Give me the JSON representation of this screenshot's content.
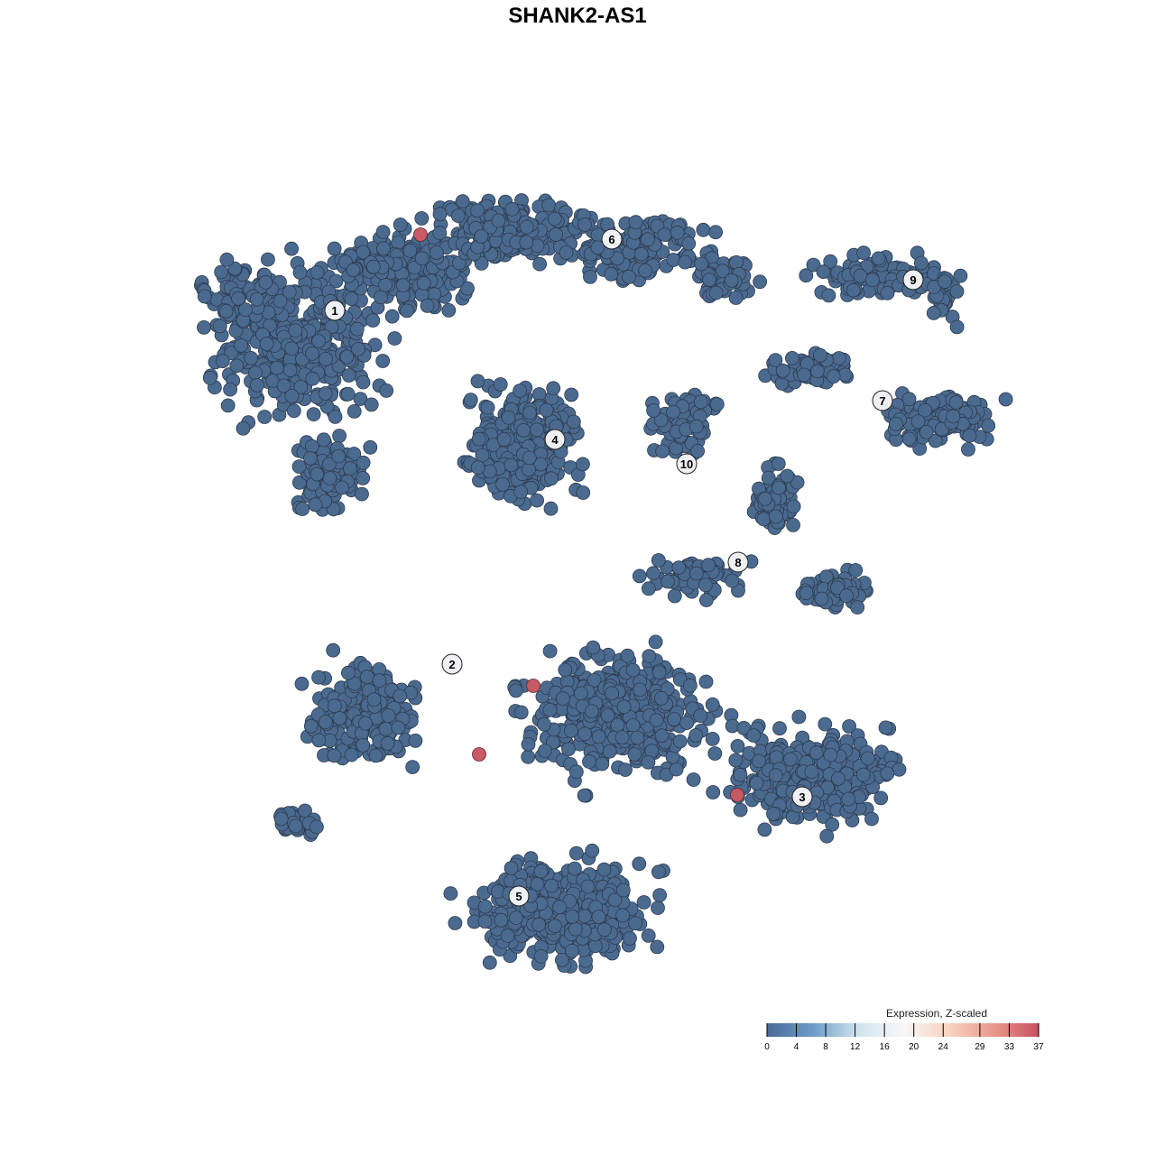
{
  "chart_data": {
    "type": "scatter",
    "title": "SHANK2-AS1",
    "xlabel": "",
    "ylabel": "",
    "grid": false,
    "point_color_low": "#4b6a8f",
    "point_color_high": "#c85a65",
    "cluster_labels": [
      "1",
      "2",
      "3",
      "4",
      "5",
      "6",
      "7",
      "8",
      "9",
      "10"
    ],
    "highlighted_points": {
      "count": 4,
      "expression": 37
    },
    "background_expression": 0,
    "colorbar": {
      "title": "Expression, Z-scaled",
      "ticks": [
        "0",
        "4",
        "8",
        "12",
        "16",
        "20",
        "24",
        "29",
        "33",
        "37"
      ],
      "range": [
        0,
        37
      ],
      "colors": [
        "#4a6a9a",
        "#6a9cc8",
        "#cfe3ee",
        "#f7f7f7",
        "#f9d3c1",
        "#e8998b",
        "#c6505f"
      ],
      "placement": "bottom-right"
    }
  }
}
